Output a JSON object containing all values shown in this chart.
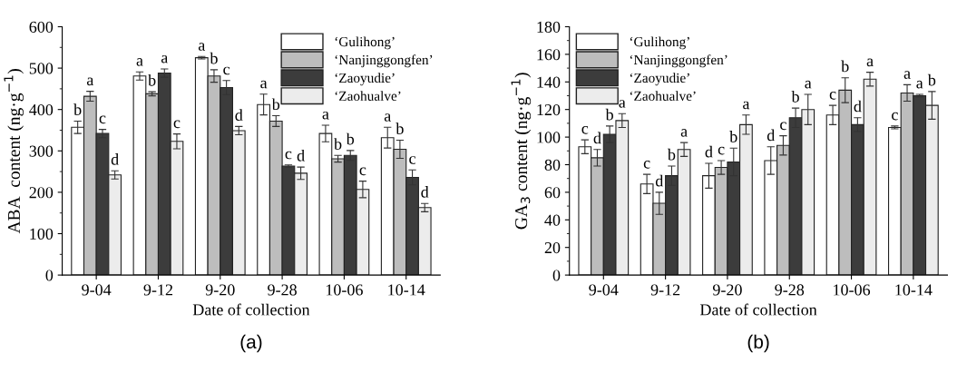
{
  "chart_data": [
    {
      "type": "bar",
      "xlabel": "Date of collection",
      "ylabel": "ABA  content (ng·g$^{−1}$)",
      "categories": [
        "9-04",
        "9-12",
        "9-20",
        "9-28",
        "10-06",
        "10-14"
      ],
      "ylim": [
        0,
        600
      ],
      "yticks": [
        0,
        100,
        200,
        300,
        400,
        500,
        600
      ],
      "legend": "top right",
      "annotations": [
        "(a)"
      ],
      "series": [
        {
          "name": "‘Gulihong’",
          "color": "#ffffff",
          "values": [
            357,
            481,
            525,
            412,
            342,
            332
          ],
          "errors": [
            15,
            10,
            3,
            25,
            20,
            25
          ],
          "value_labels": [
            "b",
            "a",
            "a",
            "a",
            "a",
            "a"
          ]
        },
        {
          "name": "‘Nanjinggongfen’",
          "color": "#bdbdbd",
          "values": [
            432,
            438,
            481,
            372,
            281,
            304
          ],
          "errors": [
            12,
            5,
            15,
            13,
            8,
            22
          ],
          "value_labels": [
            "a",
            "b",
            "b",
            "b",
            "b",
            "b"
          ]
        },
        {
          "name": "‘Zaoyudie’",
          "color": "#3c3c3c",
          "values": [
            342,
            488,
            453,
            263,
            289,
            236
          ],
          "errors": [
            10,
            10,
            17,
            3,
            12,
            18
          ],
          "value_labels": [
            "c",
            "a",
            "c",
            "c",
            "b",
            "c"
          ]
        },
        {
          "name": "‘Zaohualve’",
          "color": "#ececec",
          "values": [
            242,
            323,
            349,
            246,
            207,
            163
          ],
          "errors": [
            10,
            18,
            10,
            15,
            20,
            10
          ],
          "value_labels": [
            "d",
            "c",
            "d",
            "d",
            "c",
            "d"
          ]
        }
      ]
    },
    {
      "type": "bar",
      "xlabel": "Date of collection",
      "ylabel": "GA$_{3}$ content (ng·g$^{−1}$)",
      "categories": [
        "9-04",
        "9-12",
        "9-20",
        "9-28",
        "10-06",
        "10-14"
      ],
      "ylim": [
        0,
        180
      ],
      "yticks": [
        0,
        20,
        40,
        60,
        80,
        100,
        120,
        140,
        160,
        180
      ],
      "legend": "top left",
      "annotations": [
        "(b)"
      ],
      "series": [
        {
          "name": "‘Gulihong’",
          "color": "#ffffff",
          "values": [
            93,
            66,
            72,
            83,
            116,
            107
          ],
          "errors": [
            5,
            7,
            9,
            10,
            7,
            1
          ],
          "value_labels": [
            "c",
            "c",
            "d",
            "d",
            "c",
            "c"
          ]
        },
        {
          "name": "‘Nanjinggongfen’",
          "color": "#bdbdbd",
          "values": [
            85,
            52,
            78,
            94,
            134,
            132
          ],
          "errors": [
            6,
            8,
            5,
            7,
            9,
            6
          ],
          "value_labels": [
            "d",
            "d",
            "c",
            "c",
            "b",
            "a"
          ]
        },
        {
          "name": "‘Zaoyudie’",
          "color": "#3c3c3c",
          "values": [
            102,
            72,
            82,
            114,
            109,
            130
          ],
          "errors": [
            6,
            7,
            10,
            7,
            5,
            1
          ],
          "value_labels": [
            "b",
            "b",
            "b",
            "b",
            "d",
            "a"
          ]
        },
        {
          "name": "‘Zaohualve’",
          "color": "#ececec",
          "values": [
            112,
            91,
            109,
            120,
            142,
            123
          ],
          "errors": [
            5,
            5,
            7,
            11,
            5,
            10
          ],
          "value_labels": [
            "a",
            "a",
            "a",
            "a",
            "a",
            "b"
          ]
        }
      ]
    }
  ]
}
